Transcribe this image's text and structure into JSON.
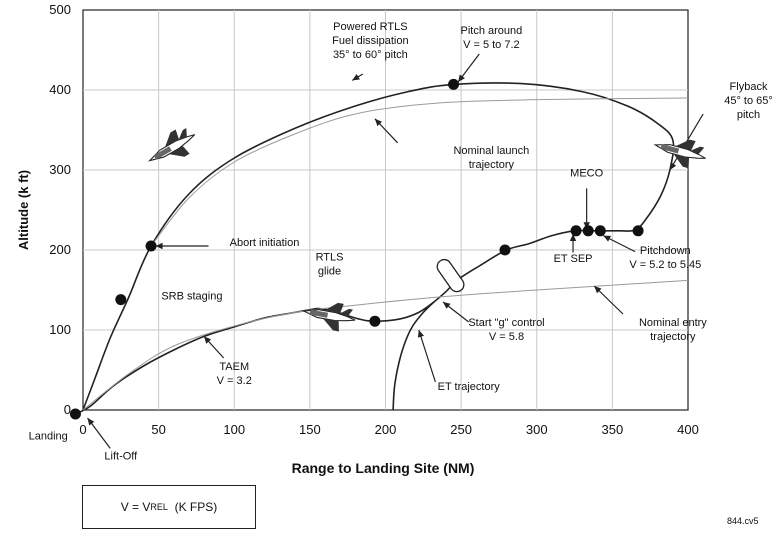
{
  "chart_data": {
    "type": "line",
    "title": "",
    "xlabel": "Range to Landing Site (NM)",
    "ylabel": "Altitude (k ft)",
    "xlim": [
      0,
      400
    ],
    "ylim": [
      0,
      500
    ],
    "xticks": [
      "0",
      "50",
      "100",
      "150",
      "200",
      "250",
      "300",
      "350",
      "400"
    ],
    "xtick_values": [
      0,
      50,
      100,
      150,
      200,
      250,
      300,
      350,
      400
    ],
    "yticks": [
      "0",
      "100",
      "200",
      "300",
      "400",
      "500"
    ],
    "ytick_values": [
      0,
      100,
      200,
      300,
      400,
      500
    ],
    "grid": true,
    "series": [
      {
        "key": "powered",
        "style": "solid",
        "points": [
          [
            0,
            0
          ],
          [
            8,
            40
          ],
          [
            18,
            90
          ],
          [
            30,
            140
          ],
          [
            45,
            205
          ],
          [
            70,
            270
          ],
          [
            100,
            315
          ],
          [
            140,
            352
          ],
          [
            180,
            380
          ],
          [
            215,
            398
          ],
          [
            245,
            407
          ],
          [
            290,
            408
          ],
          [
            330,
            398
          ],
          [
            360,
            380
          ],
          [
            380,
            358
          ],
          [
            390,
            337
          ],
          [
            388,
            300
          ],
          [
            382,
            268
          ],
          [
            372,
            238
          ],
          [
            365,
            225
          ],
          [
            355,
            224
          ],
          [
            345,
            224
          ],
          [
            335,
            224
          ],
          [
            325,
            224
          ],
          [
            310,
            218
          ],
          [
            295,
            208
          ],
          [
            280,
            200
          ],
          [
            262,
            180
          ],
          [
            248,
            163
          ],
          [
            240,
            148
          ],
          [
            232,
            135
          ],
          [
            222,
            122
          ],
          [
            210,
            114
          ],
          [
            193,
            111
          ],
          [
            182,
            114
          ],
          [
            165,
            124
          ],
          [
            155,
            127
          ]
        ]
      },
      {
        "key": "nominal_launch",
        "style": "thin",
        "points": [
          [
            45,
            205
          ],
          [
            70,
            265
          ],
          [
            100,
            310
          ],
          [
            140,
            345
          ],
          [
            180,
            370
          ],
          [
            230,
            383
          ],
          [
            300,
            388
          ],
          [
            400,
            390
          ]
        ]
      },
      {
        "key": "glide",
        "style": "solid",
        "points": [
          [
            155,
            127
          ],
          [
            140,
            122
          ],
          [
            120,
            115
          ],
          [
            100,
            104
          ],
          [
            80,
            92
          ],
          [
            60,
            75
          ],
          [
            40,
            55
          ],
          [
            20,
            30
          ],
          [
            5,
            5
          ],
          [
            -5,
            -5
          ]
        ]
      },
      {
        "key": "nominal_entry",
        "style": "thin",
        "points": [
          [
            0,
            0
          ],
          [
            30,
            45
          ],
          [
            60,
            80
          ],
          [
            100,
            105
          ],
          [
            140,
            122
          ],
          [
            180,
            131
          ],
          [
            240,
            142
          ],
          [
            300,
            150
          ],
          [
            400,
            162
          ]
        ]
      },
      {
        "key": "et_trajectory",
        "style": "solid",
        "points": [
          [
            205,
            0
          ],
          [
            206,
            30
          ],
          [
            209,
            60
          ],
          [
            213,
            85
          ],
          [
            218,
            105
          ],
          [
            225,
            122
          ],
          [
            232,
            135
          ]
        ]
      }
    ],
    "markers": [
      {
        "x": 45,
        "y": 205
      },
      {
        "x": 25,
        "y": 138
      },
      {
        "x": 245,
        "y": 407
      },
      {
        "x": 279,
        "y": 200
      },
      {
        "x": 326,
        "y": 224
      },
      {
        "x": 334,
        "y": 224
      },
      {
        "x": 342,
        "y": 224
      },
      {
        "x": 367,
        "y": 224
      },
      {
        "x": 193,
        "y": 111
      },
      {
        "x": -5,
        "y": -5
      }
    ],
    "annotations": [
      {
        "lines": [
          "Powered RTLS",
          "Fuel dissipation",
          "35° to 60° pitch"
        ],
        "x": 190,
        "y": 475,
        "anchor": "middle",
        "leader": [
          [
            178,
            412
          ],
          [
            185,
            420
          ]
        ]
      },
      {
        "lines": [
          "Pitch around",
          "V = 5 to 7.2"
        ],
        "x": 270,
        "y": 470,
        "anchor": "middle",
        "leader": [
          [
            248,
            410
          ],
          [
            262,
            445
          ]
        ]
      },
      {
        "lines": [
          "Flyback",
          "45° to 65°",
          "pitch"
        ],
        "x": 440,
        "y": 400,
        "anchor": "middle",
        "leader": [
          [
            388,
            300
          ],
          [
            410,
            370
          ]
        ]
      },
      {
        "lines": [
          "Nominal launch",
          "trajectory"
        ],
        "x": 270,
        "y": 320,
        "anchor": "middle",
        "leader": [
          [
            193,
            364
          ],
          [
            208,
            334
          ]
        ]
      },
      {
        "lines": [
          "MECO"
        ],
        "x": 333,
        "y": 292,
        "anchor": "middle",
        "leader": [
          [
            333,
            226
          ],
          [
            333,
            277
          ]
        ]
      },
      {
        "lines": [
          "Abort initiation"
        ],
        "x": 120,
        "y": 205,
        "anchor": "middle",
        "leader": [
          [
            48,
            205
          ],
          [
            83,
            205
          ]
        ]
      },
      {
        "lines": [
          "ET SEP"
        ],
        "x": 324,
        "y": 185,
        "anchor": "middle",
        "leader": [
          [
            324,
            220
          ],
          [
            324,
            197
          ]
        ]
      },
      {
        "lines": [
          "Pitchdown",
          "V = 5.2 to 5.45"
        ],
        "x": 385,
        "y": 195,
        "anchor": "middle",
        "leader": [
          [
            344,
            218
          ],
          [
            365,
            198
          ]
        ]
      },
      {
        "lines": [
          "RTLS",
          "glide"
        ],
        "x": 163,
        "y": 187,
        "anchor": "middle",
        "leader": null
      },
      {
        "lines": [
          "SRB staging"
        ],
        "x": 72,
        "y": 138,
        "anchor": "middle",
        "leader": null
      },
      {
        "lines": [
          "Start \"g\" control",
          "V = 5.8"
        ],
        "x": 280,
        "y": 105,
        "anchor": "middle",
        "leader": [
          [
            238,
            135
          ],
          [
            255,
            110
          ]
        ]
      },
      {
        "lines": [
          "Nominal entry",
          "trajectory"
        ],
        "x": 390,
        "y": 105,
        "anchor": "middle",
        "leader": [
          [
            338,
            155
          ],
          [
            357,
            120
          ]
        ]
      },
      {
        "lines": [
          "TAEM",
          "V = 3.2"
        ],
        "x": 100,
        "y": 50,
        "anchor": "middle",
        "leader": [
          [
            80,
            92
          ],
          [
            93,
            65
          ]
        ]
      },
      {
        "lines": [
          "ET trajectory"
        ],
        "x": 255,
        "y": 25,
        "anchor": "middle",
        "leader": [
          [
            222,
            100
          ],
          [
            233,
            35
          ]
        ]
      },
      {
        "lines": [
          "Landing"
        ],
        "x": -23,
        "y": -37,
        "anchor": "middle",
        "leader": null
      },
      {
        "lines": [
          "Lift-Off"
        ],
        "x": 25,
        "y": -62,
        "anchor": "middle",
        "leader": [
          [
            3,
            -10
          ],
          [
            18,
            -48
          ]
        ]
      }
    ],
    "orbiters": [
      {
        "x": 59,
        "y": 328,
        "angle": -30
      },
      {
        "x": 395,
        "y": 323,
        "angle": 15
      },
      {
        "x": 163,
        "y": 118,
        "angle": 10
      }
    ],
    "et_tank": {
      "x": 243,
      "y": 168,
      "angle": 55
    }
  },
  "legend": {
    "text_v": "V = V",
    "sub": "REL",
    "unit": "(K FPS)"
  },
  "figure_id": "844.cv5"
}
